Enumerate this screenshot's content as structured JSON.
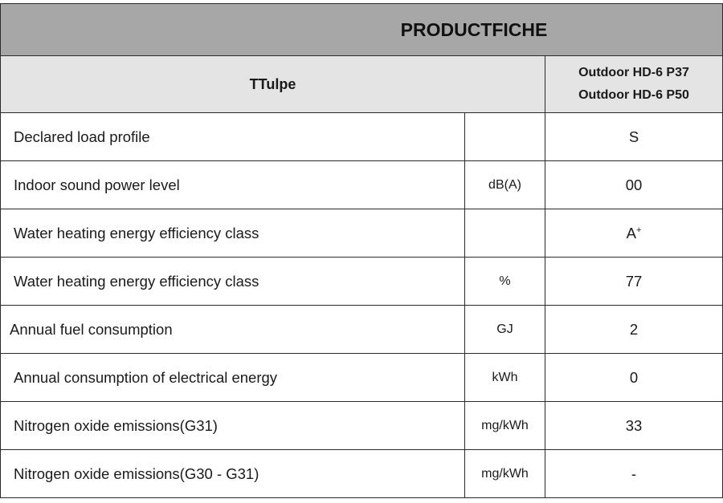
{
  "title": "PRODUCTFICHE",
  "header": {
    "type_label": "TTulpe",
    "models": [
      "Outdoor HD-6 P37",
      "Outdoor HD-6 P50"
    ]
  },
  "rows": [
    {
      "label": "Declared load profile",
      "unit": "",
      "value": "S"
    },
    {
      "label": "Indoor sound power level",
      "unit": "dB(A)",
      "value": "00"
    },
    {
      "label": "Water heating energy efficiency class",
      "unit": "",
      "value": "A",
      "value_sup": "+"
    },
    {
      "label": "Water heating energy efficiency class",
      "unit": "%",
      "value": "77"
    },
    {
      "label": "Annual fuel consumption",
      "unit": "GJ",
      "value": "2"
    },
    {
      "label": "Annual consumption of electrical energy",
      "unit": "kWh",
      "value": "0"
    },
    {
      "label": "Nitrogen oxide emissions(G31)",
      "unit": "mg/kWh",
      "value": "33"
    },
    {
      "label": "Nitrogen oxide emissions(G30 - G31)",
      "unit": "mg/kWh",
      "value": "-"
    }
  ],
  "colors": {
    "title_bg": "#a7a7a7",
    "header_bg": "#e4e4e4",
    "border": "#2a2a2a"
  }
}
